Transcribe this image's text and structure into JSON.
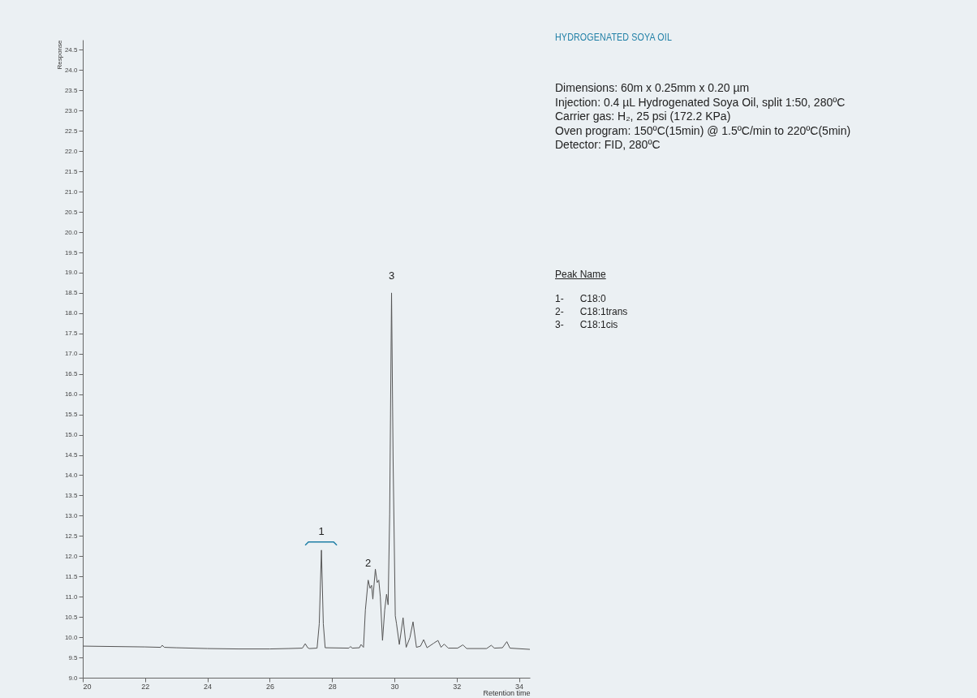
{
  "chart_data": {
    "type": "line",
    "title": "HYDROGENATED SOYA OIL",
    "xlabel": "Retention time",
    "ylabel": "Response",
    "xlim": [
      20,
      34.35
    ],
    "ylim": [
      9.0,
      24.75
    ],
    "xticks": [
      20,
      22,
      24,
      26,
      28,
      30,
      32,
      34
    ],
    "yticks": [
      {
        "value": 9,
        "label": "9.0"
      },
      9.5,
      {
        "value": 10,
        "label": "10.0"
      },
      10.5,
      {
        "value": 11,
        "label": "11.0"
      },
      11.5,
      {
        "value": 12,
        "label": "12.0"
      },
      12.5,
      {
        "value": 13,
        "label": "13.0"
      },
      13.5,
      {
        "value": 14,
        "label": "14.0"
      },
      14.5,
      {
        "value": 15,
        "label": "15.0"
      },
      15.5,
      {
        "value": 16,
        "label": "16.0"
      },
      16.5,
      {
        "value": 17,
        "label": "17.0"
      },
      17.5,
      {
        "value": 18,
        "label": "18.0"
      },
      18.5,
      {
        "value": 19,
        "label": "19.0"
      },
      19.5,
      {
        "value": 20,
        "label": "20.0"
      },
      20.5,
      {
        "value": 21,
        "label": "21.0"
      },
      21.5,
      {
        "value": 22,
        "label": "22.0"
      },
      22.5,
      {
        "value": 23,
        "label": "23.0"
      },
      23.5,
      {
        "value": 24,
        "label": "24.0"
      },
      24.5
    ],
    "grid": false,
    "marker": "none",
    "line_style": "solid",
    "series": [
      {
        "color": "#555555",
        "x": [
          20,
          22,
          22.5,
          22.55,
          22.62,
          23,
          24,
          25,
          26,
          26.59,
          27.05,
          27.14,
          27.22,
          27.27,
          27.52,
          27.59,
          27.66,
          27.72,
          27.78,
          28.54,
          28.59,
          28.65,
          28.88,
          28.93,
          29.01,
          29.07,
          29.16,
          29.22,
          29.27,
          29.31,
          29.39,
          29.45,
          29.5,
          29.55,
          29.62,
          29.69,
          29.75,
          29.8,
          29.85,
          29.91,
          29.96,
          30.03,
          30.07,
          30.16,
          30.28,
          30.38,
          30.5,
          30.6,
          30.71,
          30.84,
          30.94,
          31.05,
          31.26,
          31.4,
          31.5,
          31.6,
          31.73,
          32.03,
          32.2,
          32.32,
          32.96,
          33.11,
          33.21,
          33.47,
          33.61,
          33.71,
          34.34
        ],
        "values": [
          9.78,
          9.76,
          9.75,
          9.8,
          9.75,
          9.74,
          9.72,
          9.71,
          9.71,
          9.72,
          9.73,
          9.84,
          9.74,
          9.72,
          9.73,
          10.33,
          12.15,
          10.33,
          9.74,
          9.73,
          9.77,
          9.73,
          9.74,
          9.82,
          9.75,
          10.67,
          11.41,
          11.21,
          11.28,
          10.94,
          11.68,
          11.35,
          11.41,
          11.0,
          9.92,
          10.67,
          11.06,
          10.8,
          13.03,
          18.5,
          14.39,
          10.53,
          10.33,
          9.82,
          10.48,
          9.75,
          9.99,
          10.38,
          9.75,
          9.78,
          9.94,
          9.74,
          9.85,
          9.92,
          9.75,
          9.83,
          9.73,
          9.73,
          9.81,
          9.72,
          9.72,
          9.8,
          9.73,
          9.74,
          9.89,
          9.73,
          9.7
        ]
      }
    ],
    "annotations": [
      {
        "text": "1",
        "x": 27.66,
        "y": 12.15
      },
      {
        "text": "2",
        "x": 29.16,
        "y": 11.41
      },
      {
        "text": "3",
        "x": 29.91,
        "y": 18.5
      },
      "Dimensions: 60m x 0.25mm x 0.20 µm",
      "Injection: 0.4 µL Hydrogenated Soya Oil, split 1:50, 280ºC",
      "Carrier gas: H₂, 25 psi (172.2 KPa)",
      "Oven program: 150ºC(15min) @ 1.5ºC/min to 220ºC(5min)",
      "Detector: FID, 280ºC",
      "Peak Name",
      "1-      C18:0",
      "2-      C18:1trans",
      "3-      C18:1cis"
    ]
  }
}
